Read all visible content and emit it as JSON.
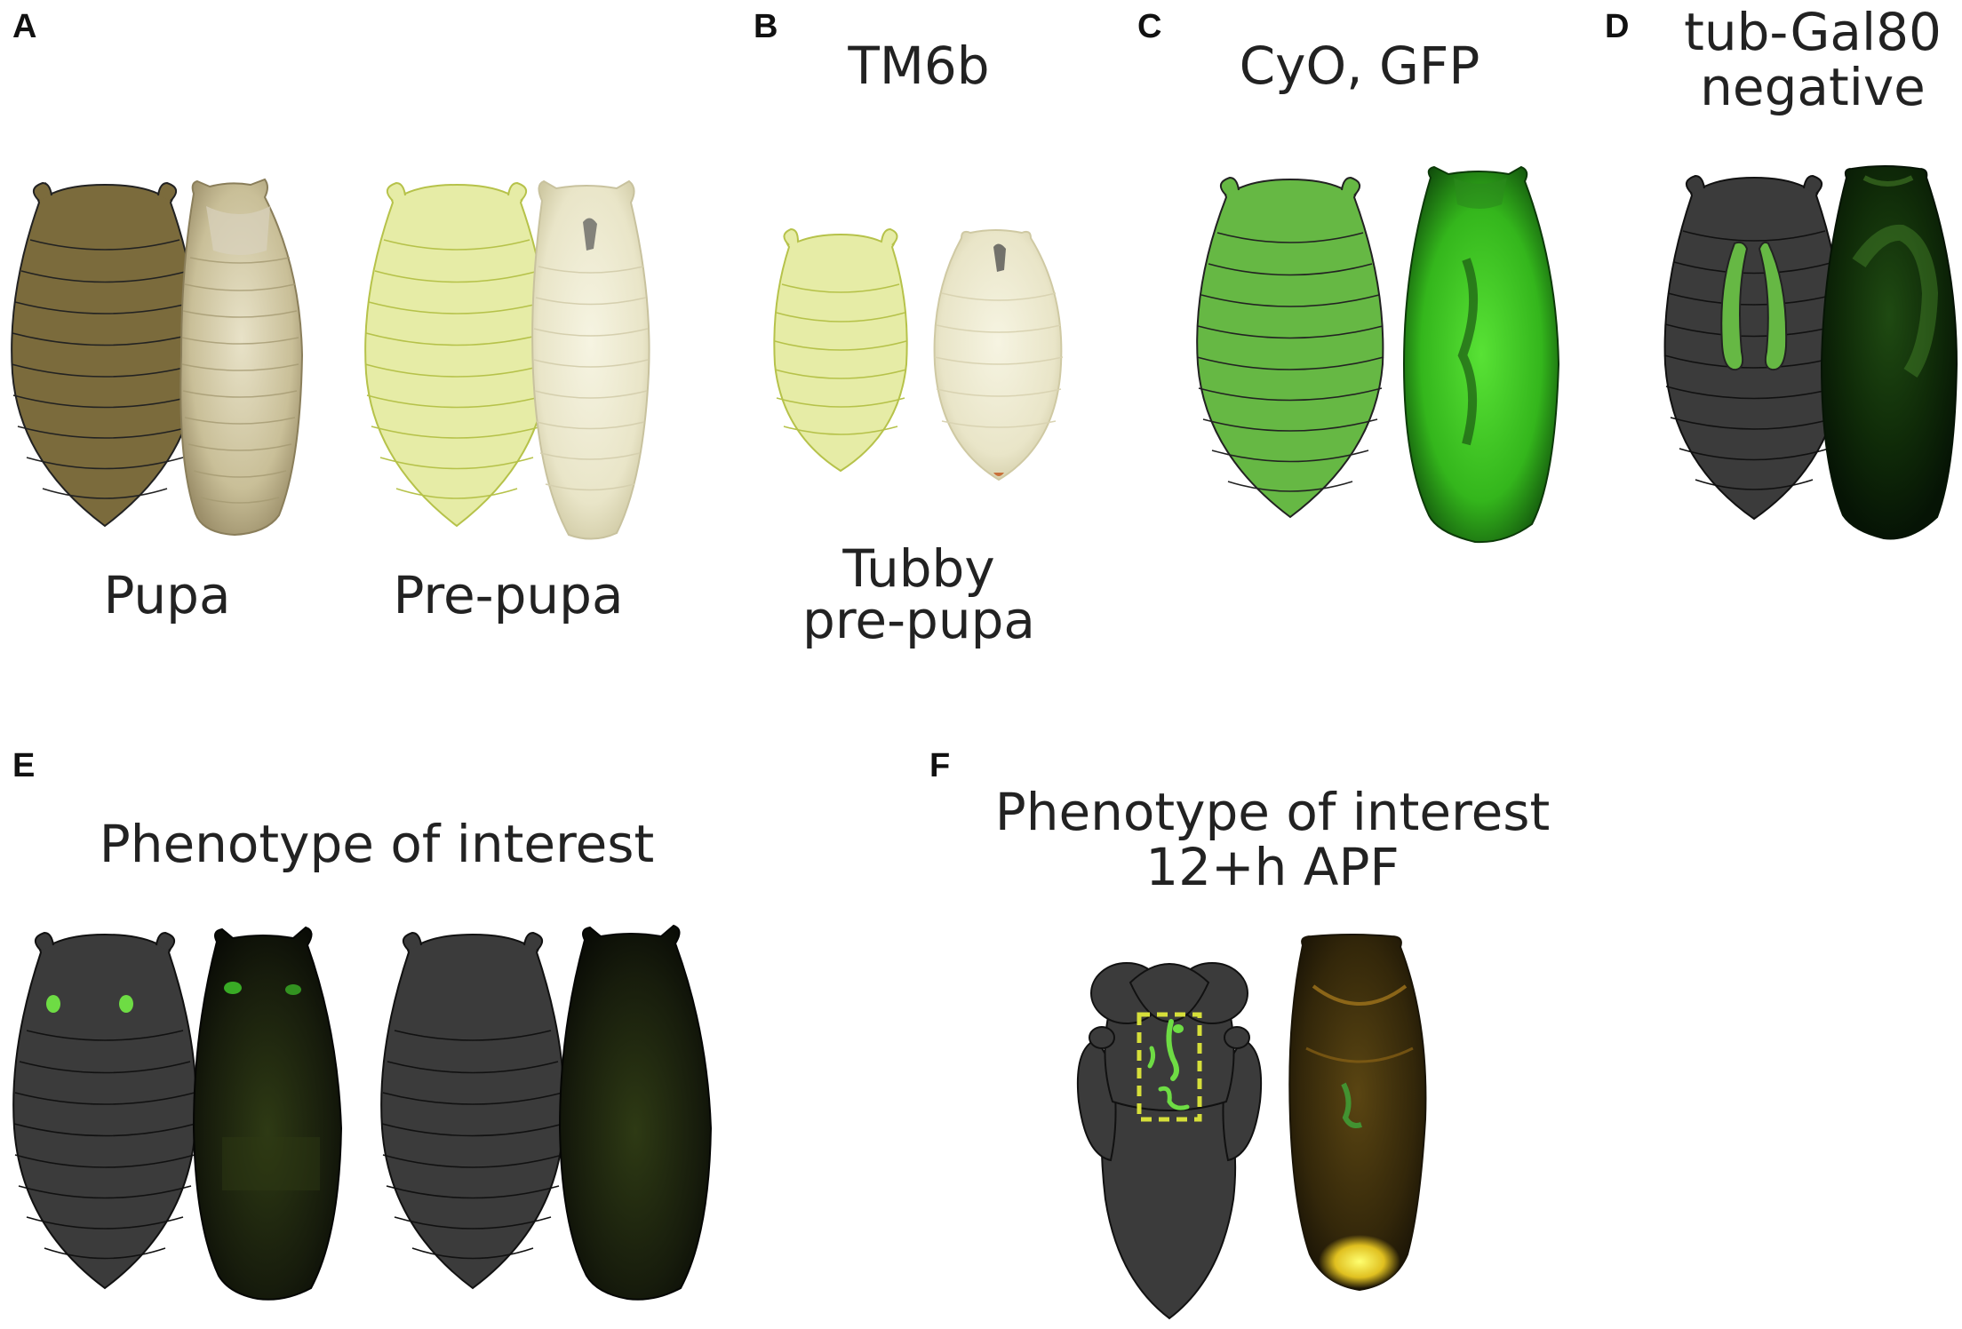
{
  "panels": {
    "A": {
      "letter": "A",
      "captions": [
        "Pupa",
        "Pre-pupa"
      ]
    },
    "B": {
      "letter": "B",
      "title": "TM6b",
      "caption_lines": [
        "Tubby",
        "pre-pupa"
      ]
    },
    "C": {
      "letter": "C",
      "title": "CyO, GFP"
    },
    "D": {
      "letter": "D",
      "title_lines": [
        "tub-Gal80",
        "negative"
      ]
    },
    "E": {
      "letter": "E",
      "title": "Phenotype of interest"
    },
    "F": {
      "letter": "F",
      "title_lines": [
        "Phenotype of interest",
        "12+h APF"
      ]
    }
  },
  "colors": {
    "pupa_fill": "#7b6b3c",
    "prepupa_fill": "#e6eca6",
    "prepupa_stroke": "#b6c24a",
    "gfp_green": "#66b844",
    "dark_fill": "#3b3b3b",
    "fluor_green": "#6edc44",
    "dashed_box": "#d6df3a"
  },
  "icons": [
    "pupa-diagram",
    "pupa-photo"
  ]
}
